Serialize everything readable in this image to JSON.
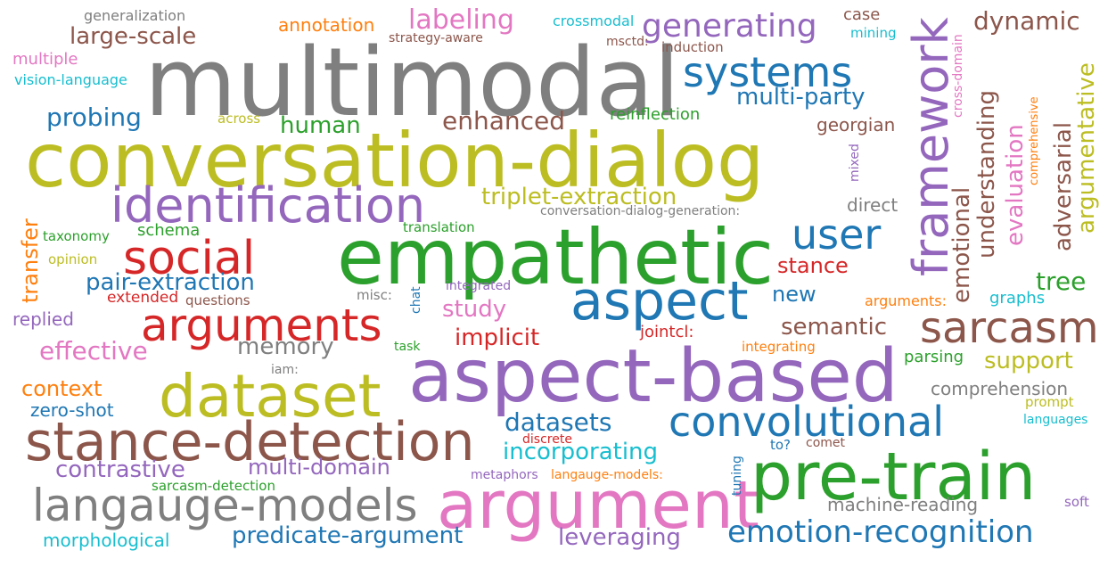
{
  "words": [
    {
      "text": "multimodal",
      "color": "#7f7f7f"
    },
    {
      "text": "conversation-dialog",
      "color": "#bcbd22"
    },
    {
      "text": "empathetic",
      "color": "#2ca02c"
    },
    {
      "text": "aspect-based",
      "color": "#9467bd"
    },
    {
      "text": "argument",
      "color": "#e377c2"
    },
    {
      "text": "pre-train",
      "color": "#2ca02c"
    },
    {
      "text": "dataset",
      "color": "#bcbd22"
    },
    {
      "text": "stance-detection",
      "color": "#8c564b"
    },
    {
      "text": "identification",
      "color": "#9467bd"
    },
    {
      "text": "langauge-models",
      "color": "#7f7f7f"
    },
    {
      "text": "arguments",
      "color": "#d62728"
    },
    {
      "text": "aspect",
      "color": "#1f77b4"
    },
    {
      "text": "convolutional",
      "color": "#1f77b4"
    },
    {
      "text": "social",
      "color": "#d62728"
    },
    {
      "text": "systems",
      "color": "#1f77b4"
    },
    {
      "text": "sarcasm",
      "color": "#8c564b"
    },
    {
      "text": "framework",
      "color": "#9467bd"
    },
    {
      "text": "user",
      "color": "#1f77b4"
    },
    {
      "text": "emotion-recognition",
      "color": "#1f77b4"
    },
    {
      "text": "generating",
      "color": "#9467bd"
    },
    {
      "text": "large-scale",
      "color": "#8c564b"
    },
    {
      "text": "labeling",
      "color": "#e377c2"
    },
    {
      "text": "dynamic",
      "color": "#8c564b"
    },
    {
      "text": "triplet-extraction",
      "color": "#bcbd22"
    },
    {
      "text": "multi-party",
      "color": "#1f77b4"
    },
    {
      "text": "enhanced",
      "color": "#8c564b"
    },
    {
      "text": "probing",
      "color": "#1f77b4"
    },
    {
      "text": "human",
      "color": "#2ca02c"
    },
    {
      "text": "pair-extraction",
      "color": "#1f77b4"
    },
    {
      "text": "implicit",
      "color": "#d62728"
    },
    {
      "text": "memory",
      "color": "#7f7f7f"
    },
    {
      "text": "effective",
      "color": "#e377c2"
    },
    {
      "text": "study",
      "color": "#e377c2"
    },
    {
      "text": "semantic",
      "color": "#8c564b"
    },
    {
      "text": "new",
      "color": "#1f77b4"
    },
    {
      "text": "stance",
      "color": "#d62728"
    },
    {
      "text": "tree",
      "color": "#2ca02c"
    },
    {
      "text": "support",
      "color": "#bcbd22"
    },
    {
      "text": "context",
      "color": "#ff7f0e"
    },
    {
      "text": "datasets",
      "color": "#1f77b4"
    },
    {
      "text": "incorporating",
      "color": "#17becf"
    },
    {
      "text": "contrastive",
      "color": "#9467bd"
    },
    {
      "text": "multi-domain",
      "color": "#9467bd"
    },
    {
      "text": "predicate-argument",
      "color": "#1f77b4"
    },
    {
      "text": "leveraging",
      "color": "#9467bd"
    },
    {
      "text": "machine-reading",
      "color": "#7f7f7f"
    },
    {
      "text": "comprehension",
      "color": "#7f7f7f"
    },
    {
      "text": "morphological",
      "color": "#17becf"
    },
    {
      "text": "zero-shot",
      "color": "#1f77b4"
    },
    {
      "text": "reinflection",
      "color": "#2ca02c"
    },
    {
      "text": "georgian",
      "color": "#8c564b"
    },
    {
      "text": "direct",
      "color": "#7f7f7f"
    },
    {
      "text": "schema",
      "color": "#2ca02c"
    },
    {
      "text": "replied",
      "color": "#9467bd"
    },
    {
      "text": "parsing",
      "color": "#2ca02c"
    },
    {
      "text": "graphs",
      "color": "#17becf"
    },
    {
      "text": "arguments:",
      "color": "#ff7f0e"
    },
    {
      "text": "jointcl:",
      "color": "#d62728"
    },
    {
      "text": "annotation",
      "color": "#ff7f0e"
    },
    {
      "text": "case",
      "color": "#8c564b"
    },
    {
      "text": "multiple",
      "color": "#e377c2"
    },
    {
      "text": "vision-language",
      "color": "#17becf"
    },
    {
      "text": "generalization",
      "color": "#7f7f7f"
    },
    {
      "text": "strategy-aware",
      "color": "#8c564b"
    },
    {
      "text": "crossmodal",
      "color": "#17becf"
    },
    {
      "text": "msctd:",
      "color": "#8c564b"
    },
    {
      "text": "induction",
      "color": "#8c564b"
    },
    {
      "text": "mining",
      "color": "#17becf"
    },
    {
      "text": "across",
      "color": "#bcbd22"
    },
    {
      "text": "conversation-dialog-generation:",
      "color": "#7f7f7f"
    },
    {
      "text": "translation",
      "color": "#2ca02c"
    },
    {
      "text": "taxonomy",
      "color": "#2ca02c"
    },
    {
      "text": "opinion",
      "color": "#bcbd22"
    },
    {
      "text": "extended",
      "color": "#d62728"
    },
    {
      "text": "questions",
      "color": "#8c564b"
    },
    {
      "text": "misc:",
      "color": "#7f7f7f"
    },
    {
      "text": "integrated",
      "color": "#9467bd"
    },
    {
      "text": "task",
      "color": "#2ca02c"
    },
    {
      "text": "iam:",
      "color": "#7f7f7f"
    },
    {
      "text": "integrating",
      "color": "#ff7f0e"
    },
    {
      "text": "discrete",
      "color": "#d62728"
    },
    {
      "text": "comet",
      "color": "#8c564b"
    },
    {
      "text": "to?",
      "color": "#1f77b4"
    },
    {
      "text": "metaphors",
      "color": "#9467bd"
    },
    {
      "text": "langauge-models:",
      "color": "#ff7f0e"
    },
    {
      "text": "sarcasm-detection",
      "color": "#2ca02c"
    },
    {
      "text": "prompt",
      "color": "#bcbd22"
    },
    {
      "text": "languages",
      "color": "#17becf"
    },
    {
      "text": "soft",
      "color": "#9467bd"
    },
    {
      "text": "emotional",
      "color": "#8c564b"
    },
    {
      "text": "understanding",
      "color": "#8c564b"
    },
    {
      "text": "evaluation",
      "color": "#e377c2"
    },
    {
      "text": "adversarial",
      "color": "#8c564b"
    },
    {
      "text": "argumentative",
      "color": "#bcbd22"
    },
    {
      "text": "transfer",
      "color": "#ff7f0e"
    },
    {
      "text": "cross-domain",
      "color": "#e377c2"
    },
    {
      "text": "comprehensive",
      "color": "#ff7f0e"
    },
    {
      "text": "mixed",
      "color": "#9467bd"
    },
    {
      "text": "chat",
      "color": "#1f77b4"
    },
    {
      "text": "tuning",
      "color": "#1f77b4"
    }
  ]
}
